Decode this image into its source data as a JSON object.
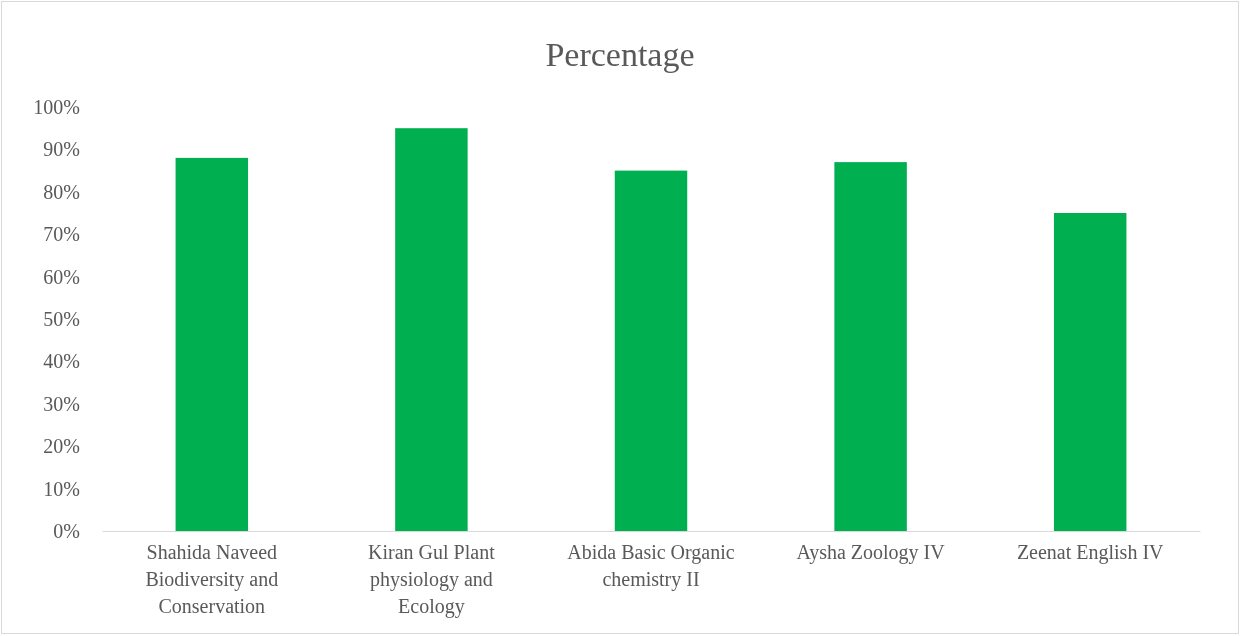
{
  "chart_data": {
    "type": "bar",
    "title": "Percentage",
    "categories": [
      "Shahida Naveed Biodiversity and Conservation",
      "Kiran Gul Plant physiology and Ecology",
      "Abida Basic Organic chemistry II",
      "Aysha Zoology IV",
      "Zeenat English IV"
    ],
    "values": [
      88,
      95,
      85,
      87,
      75
    ],
    "color": "#00b050",
    "ylim": [
      0,
      100
    ],
    "yticks": [
      {
        "value": 0,
        "label": "0%"
      },
      {
        "value": 10,
        "label": "10%"
      },
      {
        "value": 20,
        "label": "20%"
      },
      {
        "value": 30,
        "label": "30%"
      },
      {
        "value": 40,
        "label": "40%"
      },
      {
        "value": 50,
        "label": "50%"
      },
      {
        "value": 60,
        "label": "60%"
      },
      {
        "value": 70,
        "label": "70%"
      },
      {
        "value": 80,
        "label": "80%"
      },
      {
        "value": 90,
        "label": "90%"
      },
      {
        "value": 100,
        "label": "100%"
      }
    ],
    "grid": false
  }
}
